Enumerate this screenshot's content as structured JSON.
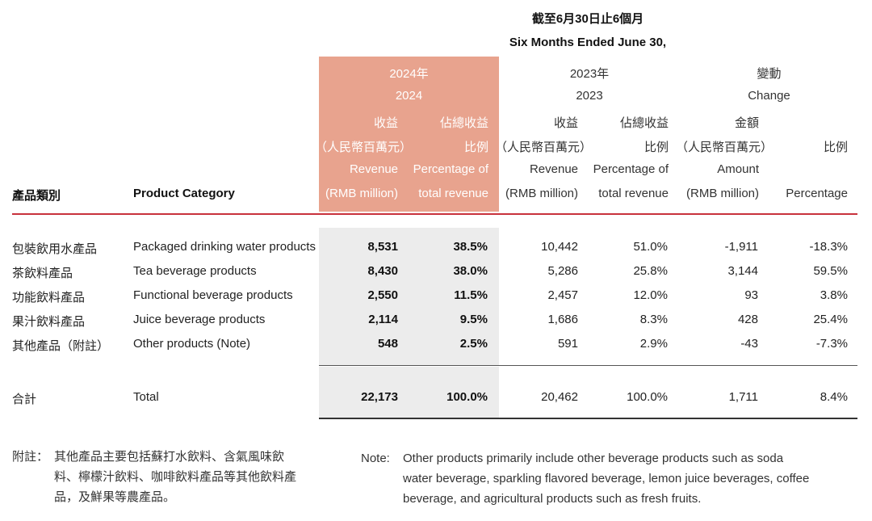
{
  "period": {
    "zh": "截至6月30日止6個月",
    "en": "Six Months Ended June 30,"
  },
  "headers": {
    "category_zh": "產品類別",
    "category_en": "Product Category",
    "y2024_zh": "2024年",
    "y2024_en": "2024",
    "y2023_zh": "2023年",
    "y2023_en": "2023",
    "change_zh": "變動",
    "change_en": "Change",
    "rev_zh": "收益",
    "rmb_zh": "（人民幣百萬元）",
    "pct_zh_1": "佔總收益",
    "pct_zh_2": "比例",
    "rev_en": "Revenue",
    "rmb_en": "(RMB million)",
    "pct_en_1": "Percentage of",
    "pct_en_2": "total revenue",
    "amount_zh": "金額",
    "amount_en": "Amount",
    "ratio_zh": "比例",
    "ratio_en": "Percentage"
  },
  "rows": [
    {
      "zh": "包裝飲用水產品",
      "en": "Packaged drinking water products",
      "rev24": "8,531",
      "pct24": "38.5%",
      "rev23": "10,442",
      "pct23": "51.0%",
      "amt": "-1,911",
      "chg": "-18.3%"
    },
    {
      "zh": "茶飲料產品",
      "en": "Tea beverage products",
      "rev24": "8,430",
      "pct24": "38.0%",
      "rev23": "5,286",
      "pct23": "25.8%",
      "amt": "3,144",
      "chg": "59.5%"
    },
    {
      "zh": "功能飲料產品",
      "en": "Functional beverage products",
      "rev24": "2,550",
      "pct24": "11.5%",
      "rev23": "2,457",
      "pct23": "12.0%",
      "amt": "93",
      "chg": "3.8%"
    },
    {
      "zh": "果汁飲料產品",
      "en": "Juice beverage products",
      "rev24": "2,114",
      "pct24": "9.5%",
      "rev23": "1,686",
      "pct23": "8.3%",
      "amt": "428",
      "chg": "25.4%"
    },
    {
      "zh": "其他產品（附註）",
      "en": "Other products (Note)",
      "rev24": "548",
      "pct24": "2.5%",
      "rev23": "591",
      "pct23": "2.9%",
      "amt": "-43",
      "chg": "-7.3%"
    }
  ],
  "total": {
    "zh": "合計",
    "en": "Total",
    "rev24": "22,173",
    "pct24": "100.0%",
    "rev23": "20,462",
    "pct23": "100.0%",
    "amt": "1,711",
    "chg": "8.4%"
  },
  "notes": {
    "zh_label": "附註：",
    "zh_line1": "其他產品主要包括蘇打水飲料、含氣風味飲",
    "zh_line2": "料、檸檬汁飲料、咖啡飲料產品等其他飲料產",
    "zh_line3": "品，及鮮果等農產品。",
    "en_label": "Note:",
    "en_line1": "Other products primarily include other beverage products such as soda",
    "en_line2": "water beverage, sparkling flavored beverage, lemon juice beverages, coffee",
    "en_line3": "beverage, and agricultural products such as fresh fruits."
  },
  "colors": {
    "highlight_2024": "#e8a38e",
    "rule": "#c8323c",
    "shade": "#ececec"
  }
}
